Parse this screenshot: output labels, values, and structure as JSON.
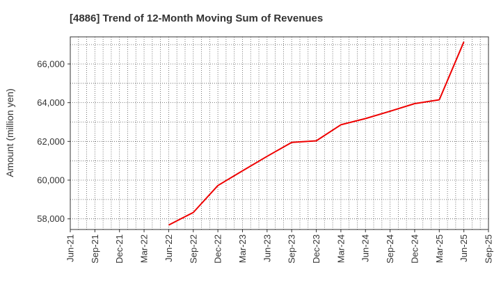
{
  "chart_data": {
    "type": "line",
    "title": "[4886]  Trend of 12-Month Moving Sum of Revenues",
    "xlabel": "",
    "ylabel": "Amount (million yen)",
    "x_ticks": [
      "Jun-21",
      "Sep-21",
      "Dec-21",
      "Mar-22",
      "Jun-22",
      "Sep-22",
      "Dec-22",
      "Mar-23",
      "Jun-23",
      "Sep-23",
      "Dec-23",
      "Mar-24",
      "Jun-24",
      "Sep-24",
      "Dec-24",
      "Mar-25",
      "Jun-25",
      "Sep-25"
    ],
    "y_ticks": [
      "58,000",
      "60,000",
      "62,000",
      "64,000",
      "66,000"
    ],
    "ylim": [
      57450,
      67400
    ],
    "grid": true,
    "series": [
      {
        "color": "#ee0000",
        "points": [
          {
            "x": "Jun-22",
            "y": 57680
          },
          {
            "x": "Sep-22",
            "y": 58330
          },
          {
            "x": "Dec-22",
            "y": 59720
          },
          {
            "x": "Mar-23",
            "y": 60480
          },
          {
            "x": "Jun-23",
            "y": 61230
          },
          {
            "x": "Sep-23",
            "y": 61950
          },
          {
            "x": "Dec-23",
            "y": 62030
          },
          {
            "x": "Mar-24",
            "y": 62860
          },
          {
            "x": "Jun-24",
            "y": 63180
          },
          {
            "x": "Sep-24",
            "y": 63560
          },
          {
            "x": "Dec-24",
            "y": 63950
          },
          {
            "x": "Mar-25",
            "y": 64150
          },
          {
            "x": "Jun-25",
            "y": 67140
          }
        ]
      }
    ]
  }
}
